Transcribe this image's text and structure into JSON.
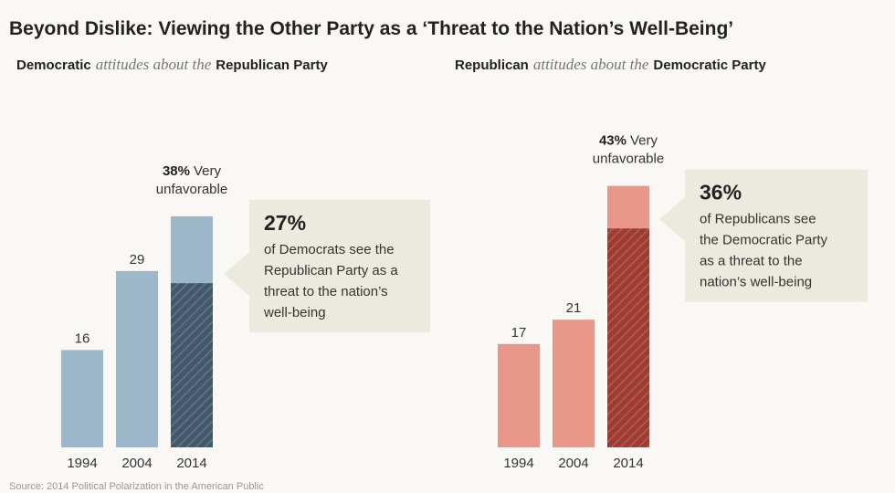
{
  "title": "Beyond Dislike: Viewing the Other Party as a ‘Threat to the Nation’s Well-Being’",
  "source": "Source: 2014 Political Polarization in the American Public",
  "chart_data": [
    {
      "type": "bar",
      "subtitle": [
        "Democratic",
        "attitudes about the",
        "Republican Party"
      ],
      "categories": [
        "1994",
        "2004",
        "2014"
      ],
      "values": [
        16,
        29,
        38
      ],
      "value_labels": [
        "16",
        "29",
        "38%"
      ],
      "value_label_note": [
        "Very",
        "unfavorable"
      ],
      "color": "#9db7ca",
      "threat": {
        "values": [
          null,
          null,
          27
        ],
        "value_labels": [
          null,
          null,
          "27%"
        ],
        "color": "#41596b",
        "note": [
          "of Democrats see the",
          "Republican Party as a",
          "threat to the nation’s",
          "well-being"
        ]
      },
      "ylim": [
        0,
        50
      ]
    },
    {
      "type": "bar",
      "subtitle": [
        "Republican",
        "attitudes about the",
        "Democratic Party"
      ],
      "categories": [
        "1994",
        "2004",
        "2014"
      ],
      "values": [
        17,
        21,
        43
      ],
      "value_labels": [
        "17",
        "21",
        "43%"
      ],
      "value_label_note": [
        "Very",
        "unfavorable"
      ],
      "color": "#e9978a",
      "threat": {
        "values": [
          null,
          null,
          36
        ],
        "value_labels": [
          null,
          null,
          "36%"
        ],
        "color": "#9e3c31",
        "note": [
          "of Republicans see",
          "the Democratic Party",
          "as a threat to the",
          "nation’s well-being"
        ]
      },
      "ylim": [
        0,
        50
      ]
    }
  ]
}
